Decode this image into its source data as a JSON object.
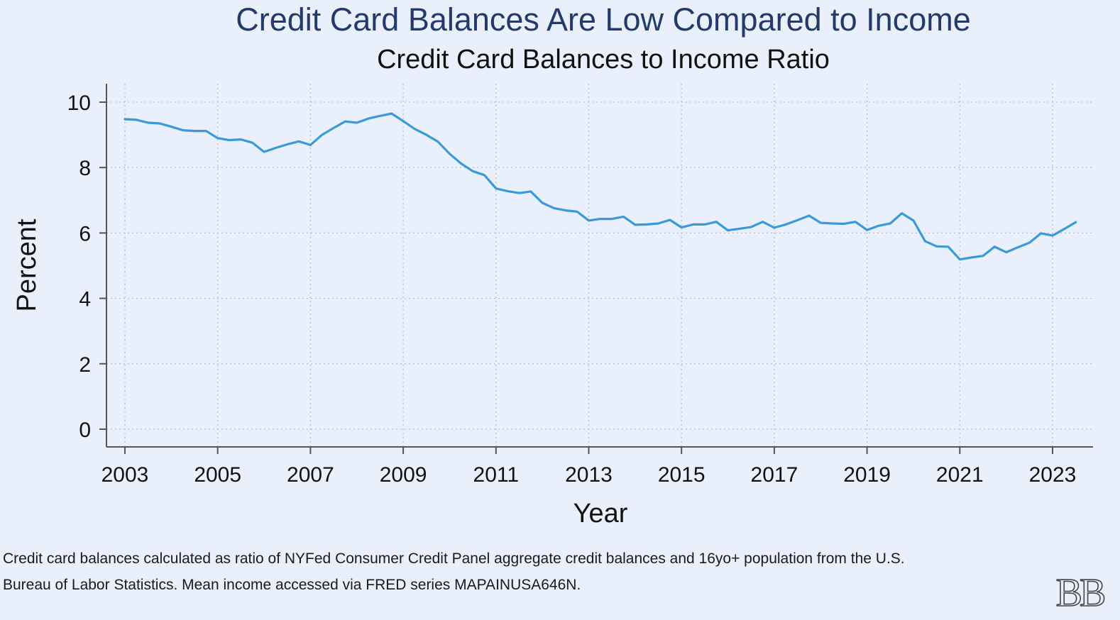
{
  "header": {
    "title": "Credit Card Balances Are Low Compared to Income",
    "subtitle": "Credit Card Balances to Income Ratio"
  },
  "footer": {
    "caption_line_1": "Credit card balances calculated as ratio of NYFed Consumer Credit Panel aggregate credit balances and 16yo+ population from the U.S.",
    "caption_line_2": "Bureau of Labor Statistics. Mean income accessed via FRED series MAPAINUSA646N.",
    "logo_text": "BB"
  },
  "colors": {
    "background": "#eaf0fb",
    "title": "#243a6b",
    "line": "#3a9ad9",
    "grid": "#b9bfc9",
    "axis": "#555555"
  },
  "chart_data": {
    "type": "line",
    "xlabel": "Year",
    "ylabel": "Percent",
    "xlim": [
      2003,
      2023.5
    ],
    "ylim": [
      0,
      10
    ],
    "xticks": [
      2003,
      2005,
      2007,
      2009,
      2011,
      2013,
      2015,
      2017,
      2019,
      2021,
      2023
    ],
    "yticks": [
      0,
      2,
      4,
      6,
      8,
      10
    ],
    "grid": true,
    "series": [
      {
        "x": [
          2003,
          2003.25,
          2003.5,
          2003.75,
          2004,
          2004.25,
          2004.5,
          2004.75,
          2005,
          2005.25,
          2005.5,
          2005.75,
          2006,
          2006.25,
          2006.5,
          2006.75,
          2007,
          2007.25,
          2007.5,
          2007.75,
          2008,
          2008.25,
          2008.5,
          2008.75,
          2009,
          2009.25,
          2009.5,
          2009.75,
          2010,
          2010.25,
          2010.5,
          2010.75,
          2011,
          2011.25,
          2011.5,
          2011.75,
          2012,
          2012.25,
          2012.5,
          2012.75,
          2013,
          2013.25,
          2013.5,
          2013.75,
          2014,
          2014.25,
          2014.5,
          2014.75,
          2015,
          2015.25,
          2015.5,
          2015.75,
          2016,
          2016.25,
          2016.5,
          2016.75,
          2017,
          2017.25,
          2017.5,
          2017.75,
          2018,
          2018.25,
          2018.5,
          2018.75,
          2019,
          2019.25,
          2019.5,
          2019.75,
          2020,
          2020.25,
          2020.5,
          2020.75,
          2021,
          2021.25,
          2021.5,
          2021.75,
          2022,
          2022.25,
          2022.5,
          2022.75,
          2023,
          2023.25,
          2023.5
        ],
        "y": [
          9.48,
          9.46,
          9.37,
          9.35,
          9.25,
          9.14,
          9.12,
          9.12,
          8.9,
          8.84,
          8.86,
          8.76,
          8.48,
          8.6,
          8.71,
          8.8,
          8.69,
          9.0,
          9.21,
          9.41,
          9.37,
          9.5,
          9.58,
          9.65,
          9.42,
          9.18,
          9.0,
          8.79,
          8.42,
          8.12,
          7.89,
          7.77,
          7.36,
          7.28,
          7.22,
          7.27,
          6.92,
          6.76,
          6.69,
          6.65,
          6.38,
          6.43,
          6.43,
          6.5,
          6.25,
          6.26,
          6.29,
          6.4,
          6.17,
          6.26,
          6.26,
          6.34,
          6.08,
          6.13,
          6.18,
          6.34,
          6.16,
          6.26,
          6.39,
          6.53,
          6.31,
          6.29,
          6.28,
          6.34,
          6.09,
          6.22,
          6.29,
          6.6,
          6.38,
          5.75,
          5.59,
          5.58,
          5.19,
          5.25,
          5.3,
          5.58,
          5.41,
          5.56,
          5.7,
          5.99,
          5.92,
          6.12,
          6.33
        ]
      }
    ]
  }
}
